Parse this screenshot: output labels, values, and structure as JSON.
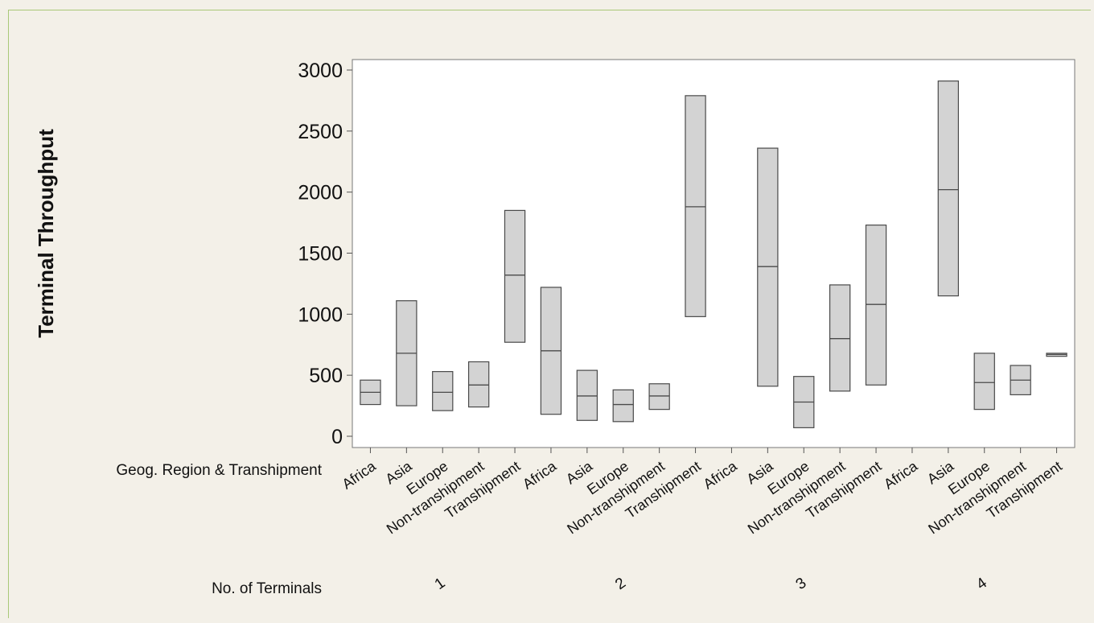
{
  "chart_data": {
    "type": "box",
    "ylabel": "Terminal Throughput",
    "row_label_1": "Geog. Region & Transhipment",
    "row_label_2": "No. of Terminals",
    "ylim": [
      -100,
      3050
    ],
    "yticks": [
      0,
      500,
      1000,
      1500,
      2000,
      2500,
      3000
    ],
    "grid": false,
    "groups": [
      {
        "name": "1",
        "items": [
          {
            "label": "Africa",
            "q1": 260,
            "median": 360,
            "q3": 460
          },
          {
            "label": "Asia",
            "q1": 250,
            "median": 680,
            "q3": 1110
          },
          {
            "label": "Europe",
            "q1": 210,
            "median": 360,
            "q3": 530
          },
          {
            "label": "Non-transhipment",
            "q1": 240,
            "median": 420,
            "q3": 610
          },
          {
            "label": "Transhipment",
            "q1": 770,
            "median": 1320,
            "q3": 1850
          }
        ]
      },
      {
        "name": "2",
        "items": [
          {
            "label": "Africa",
            "q1": 180,
            "median": 700,
            "q3": 1220
          },
          {
            "label": "Asia",
            "q1": 130,
            "median": 330,
            "q3": 540
          },
          {
            "label": "Europe",
            "q1": 120,
            "median": 260,
            "q3": 380
          },
          {
            "label": "Non-transhipment",
            "q1": 220,
            "median": 330,
            "q3": 430
          },
          {
            "label": "Transhipment",
            "q1": 980,
            "median": 1880,
            "q3": 2790
          }
        ]
      },
      {
        "name": "3",
        "items": [
          {
            "label": "Africa"
          },
          {
            "label": "Asia",
            "q1": 410,
            "median": 1390,
            "q3": 2360
          },
          {
            "label": "Europe",
            "q1": 70,
            "median": 280,
            "q3": 490
          },
          {
            "label": "Non-transhipment",
            "q1": 370,
            "median": 800,
            "q3": 1240
          },
          {
            "label": "Transhipment",
            "q1": 420,
            "median": 1080,
            "q3": 1730
          }
        ]
      },
      {
        "name": "4",
        "items": [
          {
            "label": "Africa"
          },
          {
            "label": "Asia",
            "q1": 1150,
            "median": 2020,
            "q3": 2910
          },
          {
            "label": "Europe",
            "q1": 220,
            "median": 440,
            "q3": 680
          },
          {
            "label": "Non-transhipment",
            "q1": 340,
            "median": 460,
            "q3": 580
          },
          {
            "label": "Transhipment",
            "q1": 655,
            "median": 670,
            "q3": 680
          }
        ]
      }
    ]
  },
  "colors": {
    "box_fill": "#d3d3d3",
    "box_stroke": "#4a4a4a",
    "plot_bg": "#ffffff",
    "frame_border": "#a9c878"
  }
}
